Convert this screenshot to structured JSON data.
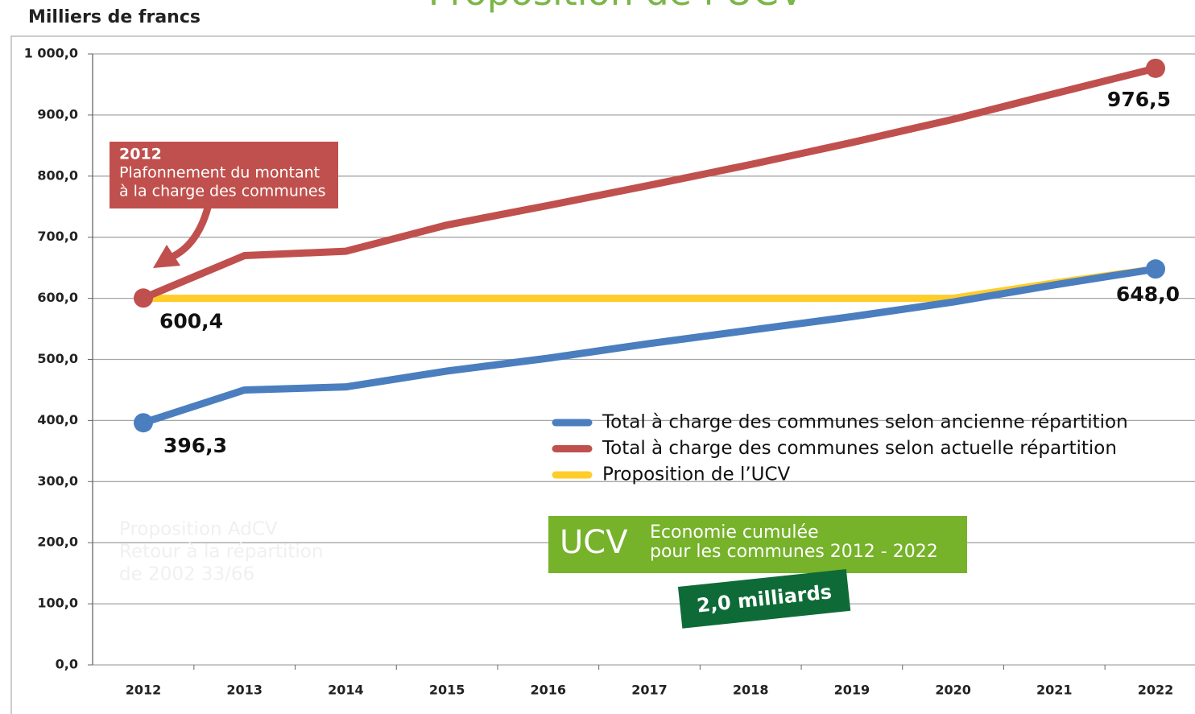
{
  "chart_data": {
    "type": "line",
    "title": "Proposition de l’UCV",
    "y_axis_label": "Milliers de francs",
    "categories": [
      "2012",
      "2013",
      "2014",
      "2015",
      "2016",
      "2017",
      "2018",
      "2019",
      "2020",
      "2021",
      "2022"
    ],
    "series": [
      {
        "name": "Total à charge des communes selon ancienne répartition",
        "color": "#4a7ebf",
        "values": [
          396.3,
          450,
          455,
          481,
          502,
          526,
          548,
          570,
          594,
          622,
          648.0
        ],
        "value_labels": [
          "396,3",
          null,
          null,
          null,
          null,
          null,
          null,
          null,
          null,
          null,
          "648,0"
        ]
      },
      {
        "name": "Total à charge des communes selon actuelle répartition",
        "color": "#c0504d",
        "values": [
          600.4,
          670,
          677,
          720,
          752,
          785,
          819,
          855,
          893,
          935,
          976.5
        ],
        "value_labels": [
          "600,4",
          null,
          null,
          null,
          null,
          null,
          null,
          null,
          null,
          null,
          "976,5"
        ]
      },
      {
        "name": "Proposition de l’UCV",
        "color": "#ffcc29",
        "values": [
          600,
          600,
          600,
          600,
          600,
          600,
          600,
          600,
          600,
          625,
          648
        ]
      }
    ],
    "ylim": [
      0,
      1000
    ],
    "yticks": [
      {
        "value": 0,
        "label": "0,0"
      },
      {
        "value": 100,
        "label": "100,0"
      },
      {
        "value": 200,
        "label": "200,0"
      },
      {
        "value": 300,
        "label": "300,0"
      },
      {
        "value": 400,
        "label": "400,0"
      },
      {
        "value": 500,
        "label": "500,0"
      },
      {
        "value": 600,
        "label": "600,0"
      },
      {
        "value": 700,
        "label": "700,0"
      },
      {
        "value": 800,
        "label": "800,0"
      },
      {
        "value": 900,
        "label": "900,0"
      },
      {
        "value": 1000,
        "label": "1 000,0"
      }
    ],
    "grid": true,
    "annotations": {
      "callout": [
        "2012",
        "Plafonnement du montant",
        "à la charge des communes"
      ],
      "faded": [
        "Proposition AdCV",
        "Retour à la répartition",
        "de 2002  33/66"
      ],
      "box_title": "UCV",
      "box_text": [
        "Economie cumulée",
        "pour les communes 2012 - 2022"
      ],
      "total": "2,0 milliards"
    }
  }
}
